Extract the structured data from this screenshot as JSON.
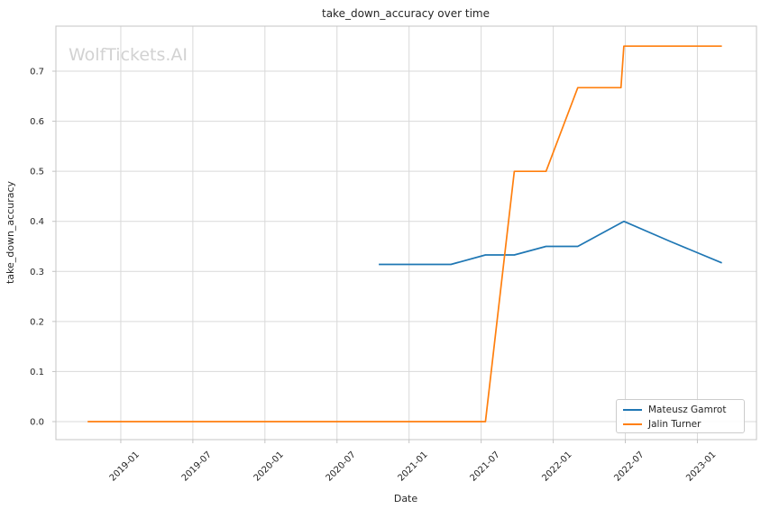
{
  "watermark": "WolfTickets.AI",
  "chart_data": {
    "type": "line",
    "title": "take_down_accuracy over time",
    "xlabel": "Date",
    "ylabel": "take_down_accuracy",
    "grid": true,
    "legend_position": "lower right",
    "colors": {
      "background": "#ffffff",
      "grid": "#d9d9d9",
      "spine": "#c4c4c4",
      "tick": "#c4c4c4",
      "text": "#262626",
      "watermark": "#d2d2d2"
    },
    "xlim": [
      2018.55,
      2023.41
    ],
    "ylim": [
      -0.036,
      0.79
    ],
    "x_ticks": [
      {
        "label": "2019-01",
        "x": 2019.0
      },
      {
        "label": "2019-07",
        "x": 2019.5
      },
      {
        "label": "2020-01",
        "x": 2020.0
      },
      {
        "label": "2020-07",
        "x": 2020.5
      },
      {
        "label": "2021-01",
        "x": 2021.0
      },
      {
        "label": "2021-07",
        "x": 2021.5
      },
      {
        "label": "2022-01",
        "x": 2022.0
      },
      {
        "label": "2022-07",
        "x": 2022.5
      },
      {
        "label": "2023-01",
        "x": 2023.0
      }
    ],
    "y_ticks": [
      {
        "label": "0.0",
        "y": 0.0
      },
      {
        "label": "0.1",
        "y": 0.1
      },
      {
        "label": "0.2",
        "y": 0.2
      },
      {
        "label": "0.3",
        "y": 0.3
      },
      {
        "label": "0.4",
        "y": 0.4
      },
      {
        "label": "0.5",
        "y": 0.5
      },
      {
        "label": "0.6",
        "y": 0.6
      },
      {
        "label": "0.7",
        "y": 0.7
      }
    ],
    "series": [
      {
        "name": "Mateusz Gamrot",
        "color": "#1f77b4",
        "points": [
          {
            "date": "2020-10",
            "x": 2020.79,
            "y": 0.314
          },
          {
            "date": "2021-04",
            "x": 2021.29,
            "y": 0.314
          },
          {
            "date": "2021-07",
            "x": 2021.53,
            "y": 0.333
          },
          {
            "date": "2021-10",
            "x": 2021.73,
            "y": 0.333
          },
          {
            "date": "2021-12",
            "x": 2021.95,
            "y": 0.35
          },
          {
            "date": "2022-03",
            "x": 2022.17,
            "y": 0.35
          },
          {
            "date": "2022-06",
            "x": 2022.49,
            "y": 0.4
          },
          {
            "date": "2022-10",
            "x": 2022.81,
            "y": 0.36
          },
          {
            "date": "2023-03",
            "x": 2023.17,
            "y": 0.317
          }
        ]
      },
      {
        "name": "Jalin Turner",
        "color": "#ff7f0e",
        "points": [
          {
            "date": "2018-10",
            "x": 2018.77,
            "y": 0.0
          },
          {
            "date": "2021-07",
            "x": 2021.53,
            "y": 0.0
          },
          {
            "date": "2021-10",
            "x": 2021.73,
            "y": 0.5
          },
          {
            "date": "2021-12",
            "x": 2021.95,
            "y": 0.5
          },
          {
            "date": "2022-03",
            "x": 2022.17,
            "y": 0.667
          },
          {
            "date": "2022-06",
            "x": 2022.47,
            "y": 0.667
          },
          {
            "date": "2022-06",
            "x": 2022.49,
            "y": 0.75
          },
          {
            "date": "2023-03",
            "x": 2023.17,
            "y": 0.75
          }
        ]
      }
    ]
  }
}
